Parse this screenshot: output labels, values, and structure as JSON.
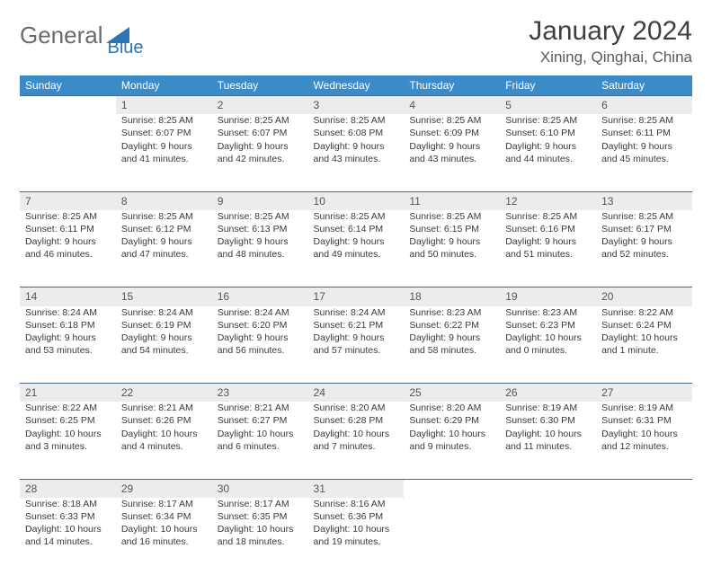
{
  "logo": {
    "part1": "General",
    "part2": "Blue",
    "triangle_color": "#2e74b5",
    "text_color": "#6a6a6a"
  },
  "title": "January 2024",
  "location": "Xining, Qinghai, China",
  "colors": {
    "header_bg": "#3b8bc9",
    "header_text": "#ffffff",
    "daynum_bg": "#ececec",
    "row_border": "#4a6a8a",
    "body_text": "#3a3a3a"
  },
  "weekdays": [
    "Sunday",
    "Monday",
    "Tuesday",
    "Wednesday",
    "Thursday",
    "Friday",
    "Saturday"
  ],
  "weeks": [
    {
      "nums": [
        "",
        "1",
        "2",
        "3",
        "4",
        "5",
        "6"
      ],
      "cells": [
        null,
        {
          "sunrise": "Sunrise: 8:25 AM",
          "sunset": "Sunset: 6:07 PM",
          "d1": "Daylight: 9 hours",
          "d2": "and 41 minutes."
        },
        {
          "sunrise": "Sunrise: 8:25 AM",
          "sunset": "Sunset: 6:07 PM",
          "d1": "Daylight: 9 hours",
          "d2": "and 42 minutes."
        },
        {
          "sunrise": "Sunrise: 8:25 AM",
          "sunset": "Sunset: 6:08 PM",
          "d1": "Daylight: 9 hours",
          "d2": "and 43 minutes."
        },
        {
          "sunrise": "Sunrise: 8:25 AM",
          "sunset": "Sunset: 6:09 PM",
          "d1": "Daylight: 9 hours",
          "d2": "and 43 minutes."
        },
        {
          "sunrise": "Sunrise: 8:25 AM",
          "sunset": "Sunset: 6:10 PM",
          "d1": "Daylight: 9 hours",
          "d2": "and 44 minutes."
        },
        {
          "sunrise": "Sunrise: 8:25 AM",
          "sunset": "Sunset: 6:11 PM",
          "d1": "Daylight: 9 hours",
          "d2": "and 45 minutes."
        }
      ]
    },
    {
      "nums": [
        "7",
        "8",
        "9",
        "10",
        "11",
        "12",
        "13"
      ],
      "cells": [
        {
          "sunrise": "Sunrise: 8:25 AM",
          "sunset": "Sunset: 6:11 PM",
          "d1": "Daylight: 9 hours",
          "d2": "and 46 minutes."
        },
        {
          "sunrise": "Sunrise: 8:25 AM",
          "sunset": "Sunset: 6:12 PM",
          "d1": "Daylight: 9 hours",
          "d2": "and 47 minutes."
        },
        {
          "sunrise": "Sunrise: 8:25 AM",
          "sunset": "Sunset: 6:13 PM",
          "d1": "Daylight: 9 hours",
          "d2": "and 48 minutes."
        },
        {
          "sunrise": "Sunrise: 8:25 AM",
          "sunset": "Sunset: 6:14 PM",
          "d1": "Daylight: 9 hours",
          "d2": "and 49 minutes."
        },
        {
          "sunrise": "Sunrise: 8:25 AM",
          "sunset": "Sunset: 6:15 PM",
          "d1": "Daylight: 9 hours",
          "d2": "and 50 minutes."
        },
        {
          "sunrise": "Sunrise: 8:25 AM",
          "sunset": "Sunset: 6:16 PM",
          "d1": "Daylight: 9 hours",
          "d2": "and 51 minutes."
        },
        {
          "sunrise": "Sunrise: 8:25 AM",
          "sunset": "Sunset: 6:17 PM",
          "d1": "Daylight: 9 hours",
          "d2": "and 52 minutes."
        }
      ]
    },
    {
      "nums": [
        "14",
        "15",
        "16",
        "17",
        "18",
        "19",
        "20"
      ],
      "cells": [
        {
          "sunrise": "Sunrise: 8:24 AM",
          "sunset": "Sunset: 6:18 PM",
          "d1": "Daylight: 9 hours",
          "d2": "and 53 minutes."
        },
        {
          "sunrise": "Sunrise: 8:24 AM",
          "sunset": "Sunset: 6:19 PM",
          "d1": "Daylight: 9 hours",
          "d2": "and 54 minutes."
        },
        {
          "sunrise": "Sunrise: 8:24 AM",
          "sunset": "Sunset: 6:20 PM",
          "d1": "Daylight: 9 hours",
          "d2": "and 56 minutes."
        },
        {
          "sunrise": "Sunrise: 8:24 AM",
          "sunset": "Sunset: 6:21 PM",
          "d1": "Daylight: 9 hours",
          "d2": "and 57 minutes."
        },
        {
          "sunrise": "Sunrise: 8:23 AM",
          "sunset": "Sunset: 6:22 PM",
          "d1": "Daylight: 9 hours",
          "d2": "and 58 minutes."
        },
        {
          "sunrise": "Sunrise: 8:23 AM",
          "sunset": "Sunset: 6:23 PM",
          "d1": "Daylight: 10 hours",
          "d2": "and 0 minutes."
        },
        {
          "sunrise": "Sunrise: 8:22 AM",
          "sunset": "Sunset: 6:24 PM",
          "d1": "Daylight: 10 hours",
          "d2": "and 1 minute."
        }
      ]
    },
    {
      "nums": [
        "21",
        "22",
        "23",
        "24",
        "25",
        "26",
        "27"
      ],
      "cells": [
        {
          "sunrise": "Sunrise: 8:22 AM",
          "sunset": "Sunset: 6:25 PM",
          "d1": "Daylight: 10 hours",
          "d2": "and 3 minutes."
        },
        {
          "sunrise": "Sunrise: 8:21 AM",
          "sunset": "Sunset: 6:26 PM",
          "d1": "Daylight: 10 hours",
          "d2": "and 4 minutes."
        },
        {
          "sunrise": "Sunrise: 8:21 AM",
          "sunset": "Sunset: 6:27 PM",
          "d1": "Daylight: 10 hours",
          "d2": "and 6 minutes."
        },
        {
          "sunrise": "Sunrise: 8:20 AM",
          "sunset": "Sunset: 6:28 PM",
          "d1": "Daylight: 10 hours",
          "d2": "and 7 minutes."
        },
        {
          "sunrise": "Sunrise: 8:20 AM",
          "sunset": "Sunset: 6:29 PM",
          "d1": "Daylight: 10 hours",
          "d2": "and 9 minutes."
        },
        {
          "sunrise": "Sunrise: 8:19 AM",
          "sunset": "Sunset: 6:30 PM",
          "d1": "Daylight: 10 hours",
          "d2": "and 11 minutes."
        },
        {
          "sunrise": "Sunrise: 8:19 AM",
          "sunset": "Sunset: 6:31 PM",
          "d1": "Daylight: 10 hours",
          "d2": "and 12 minutes."
        }
      ]
    },
    {
      "nums": [
        "28",
        "29",
        "30",
        "31",
        "",
        "",
        ""
      ],
      "cells": [
        {
          "sunrise": "Sunrise: 8:18 AM",
          "sunset": "Sunset: 6:33 PM",
          "d1": "Daylight: 10 hours",
          "d2": "and 14 minutes."
        },
        {
          "sunrise": "Sunrise: 8:17 AM",
          "sunset": "Sunset: 6:34 PM",
          "d1": "Daylight: 10 hours",
          "d2": "and 16 minutes."
        },
        {
          "sunrise": "Sunrise: 8:17 AM",
          "sunset": "Sunset: 6:35 PM",
          "d1": "Daylight: 10 hours",
          "d2": "and 18 minutes."
        },
        {
          "sunrise": "Sunrise: 8:16 AM",
          "sunset": "Sunset: 6:36 PM",
          "d1": "Daylight: 10 hours",
          "d2": "and 19 minutes."
        },
        null,
        null,
        null
      ]
    }
  ]
}
